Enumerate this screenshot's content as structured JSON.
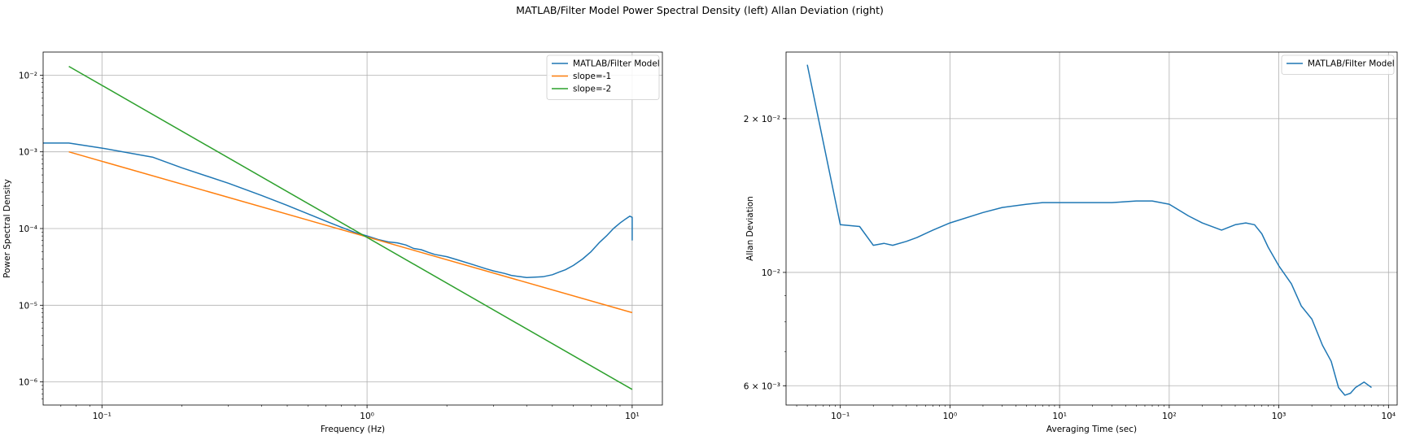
{
  "figure": {
    "suptitle": "MATLAB/Filter Model Power Spectral Density (left) Allan Deviation (right)"
  },
  "chart_data": [
    {
      "type": "line",
      "title": "",
      "xlabel": "Frequency (Hz)",
      "ylabel": "Power Spectral Density",
      "xscale": "log",
      "yscale": "log",
      "xlim": [
        0.06,
        13
      ],
      "ylim": [
        5e-07,
        0.02
      ],
      "grid": true,
      "legend_position": "top-right",
      "x_ticks": [
        {
          "value": 0.1,
          "label": "10⁻¹"
        },
        {
          "value": 1,
          "label": "10⁰"
        },
        {
          "value": 10,
          "label": "10¹"
        }
      ],
      "y_ticks": [
        {
          "value": 1e-06,
          "label": "10⁻⁶"
        },
        {
          "value": 1e-05,
          "label": "10⁻⁵"
        },
        {
          "value": 0.0001,
          "label": "10⁻⁴"
        },
        {
          "value": 0.001,
          "label": "10⁻³"
        },
        {
          "value": 0.01,
          "label": "10⁻²"
        }
      ],
      "series": [
        {
          "name": "MATLAB/Filter Model",
          "color": "#1f77b4",
          "x": [
            0.04,
            0.075,
            0.1,
            0.156,
            0.2,
            0.3,
            0.4,
            0.5,
            0.6,
            0.7,
            0.8,
            0.9,
            1.0,
            1.1,
            1.2,
            1.3,
            1.4,
            1.5,
            1.6,
            1.7,
            1.8,
            2.0,
            2.2,
            2.5,
            2.8,
            3.0,
            3.3,
            3.5,
            3.8,
            4.0,
            4.3,
            4.6,
            5.0,
            5.3,
            5.6,
            6.0,
            6.5,
            7.0,
            7.5,
            8.0,
            8.5,
            9.0,
            9.5,
            9.8,
            10.0,
            10.0
          ],
          "y": [
            0.0013,
            0.0013,
            0.00112,
            0.00085,
            0.00062,
            0.00039,
            0.00027,
            0.0002,
            0.000155,
            0.000125,
            0.000104,
            8.9e-05,
            8e-05,
            7.2e-05,
            6.7e-05,
            6.5e-05,
            6.1e-05,
            5.5e-05,
            5.3e-05,
            4.9e-05,
            4.6e-05,
            4.3e-05,
            3.9e-05,
            3.4e-05,
            3e-05,
            2.8e-05,
            2.6e-05,
            2.45e-05,
            2.35e-05,
            2.3e-05,
            2.32e-05,
            2.35e-05,
            2.5e-05,
            2.7e-05,
            2.9e-05,
            3.3e-05,
            4e-05,
            5e-05,
            6.5e-05,
            8e-05,
            0.0001,
            0.000118,
            0.000135,
            0.000145,
            0.00014,
            7e-05
          ]
        },
        {
          "name": "slope=-1",
          "color": "#ff7f0e",
          "x": [
            0.075,
            10
          ],
          "y": [
            0.001,
            8e-06
          ]
        },
        {
          "name": "slope=-2",
          "color": "#2ca02c",
          "x": [
            0.075,
            10
          ],
          "y": [
            0.013,
            8e-07
          ]
        }
      ]
    },
    {
      "type": "line",
      "title": "",
      "xlabel": "Averaging Time (sec)",
      "ylabel": "Allan Deviation",
      "xscale": "log",
      "yscale": "log",
      "xlim": [
        0.032,
        12000
      ],
      "ylim": [
        0.0055,
        0.027
      ],
      "grid": true,
      "legend_position": "top-right",
      "x_ticks": [
        {
          "value": 0.1,
          "label": "10⁻¹"
        },
        {
          "value": 1,
          "label": "10⁰"
        },
        {
          "value": 10,
          "label": "10¹"
        },
        {
          "value": 100,
          "label": "10²"
        },
        {
          "value": 1000,
          "label": "10³"
        },
        {
          "value": 10000,
          "label": "10⁴"
        }
      ],
      "y_ticks": [
        {
          "value": 0.006,
          "label": "6 × 10⁻³"
        },
        {
          "value": 0.01,
          "label": "10⁻²"
        },
        {
          "value": 0.02,
          "label": "2 × 10⁻²"
        }
      ],
      "series": [
        {
          "name": "MATLAB/Filter Model",
          "color": "#1f77b4",
          "x": [
            0.05,
            0.1,
            0.15,
            0.2,
            0.25,
            0.3,
            0.4,
            0.5,
            0.7,
            1,
            2,
            3,
            5,
            7,
            10,
            20,
            30,
            50,
            70,
            100,
            150,
            200,
            300,
            400,
            500,
            600,
            700,
            800,
            1000,
            1300,
            1600,
            2000,
            2500,
            3000,
            3500,
            4000,
            4500,
            5000,
            6000,
            7000
          ],
          "y": [
            0.0255,
            0.0124,
            0.0123,
            0.0113,
            0.0114,
            0.0113,
            0.0115,
            0.0117,
            0.0121,
            0.0125,
            0.0131,
            0.0134,
            0.0136,
            0.0137,
            0.0137,
            0.0137,
            0.0137,
            0.0138,
            0.0138,
            0.0136,
            0.0129,
            0.0125,
            0.0121,
            0.0124,
            0.0125,
            0.0124,
            0.0119,
            0.0112,
            0.0103,
            0.0095,
            0.0086,
            0.0081,
            0.0072,
            0.0067,
            0.00595,
            0.00575,
            0.0058,
            0.00595,
            0.0061,
            0.00595
          ]
        }
      ]
    }
  ]
}
